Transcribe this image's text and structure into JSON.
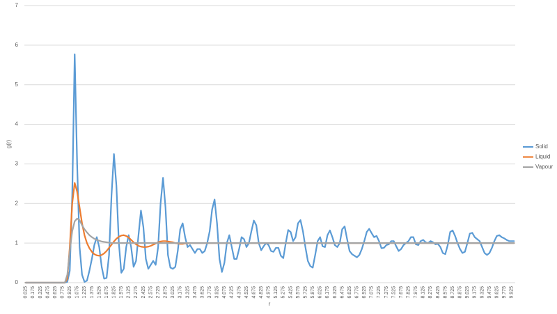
{
  "chart_data": {
    "type": "line",
    "x_label": "r",
    "y_label": "g(r)",
    "ylim": [
      0,
      7
    ],
    "yticks": [
      0,
      1,
      2,
      3,
      4,
      5,
      6,
      7
    ],
    "grid": true,
    "legend": "right",
    "categories": [
      "0.025",
      null,
      null,
      "0.175",
      null,
      null,
      "0.325",
      null,
      null,
      "0.475",
      null,
      null,
      "0.625",
      null,
      null,
      "0.775",
      null,
      null,
      "0.925",
      null,
      null,
      "1.075",
      null,
      null,
      "1.225",
      null,
      null,
      "1.375",
      null,
      null,
      "1.525",
      null,
      null,
      "1.675",
      null,
      null,
      "1.825",
      null,
      null,
      "1.975",
      null,
      null,
      "2.125",
      null,
      null,
      "2.275",
      null,
      null,
      "2.425",
      null,
      null,
      "2.575",
      null,
      null,
      "2.725",
      null,
      null,
      "2.875",
      null,
      null,
      "3.025",
      null,
      null,
      "3.175",
      null,
      null,
      "3.325",
      null,
      null,
      "3.475",
      null,
      null,
      "3.625",
      null,
      null,
      "3.775",
      null,
      null,
      "3.925",
      null,
      null,
      "4.075",
      null,
      null,
      "4.225",
      null,
      null,
      "4.375",
      null,
      null,
      "4.525",
      null,
      null,
      "4.675",
      null,
      null,
      "4.825",
      null,
      null,
      "4.975",
      null,
      null,
      "5.125",
      null,
      null,
      "5.275",
      null,
      null,
      "5.425",
      null,
      null,
      "5.575",
      null,
      null,
      "5.725",
      null,
      null,
      "5.875",
      null,
      null,
      "6.025",
      null,
      null,
      "6.175",
      null,
      null,
      "6.325",
      null,
      null,
      "6.475",
      null,
      null,
      "6.625",
      null,
      null,
      "6.775",
      null,
      null,
      "6.925",
      null,
      null,
      "7.075",
      null,
      null,
      "7.225",
      null,
      null,
      "7.375",
      null,
      null,
      "7.525",
      null,
      null,
      "7.675",
      null,
      null,
      "7.825",
      null,
      null,
      "7.975",
      null,
      null,
      "8.125",
      null,
      null,
      "8.275",
      null,
      null,
      "8.425",
      null,
      null,
      "8.575",
      null,
      null,
      "8.725",
      null,
      null,
      "8.875",
      null,
      null,
      "9.025",
      null,
      null,
      "9.175",
      null,
      null,
      "9.325",
      null,
      null,
      "9.475",
      null,
      null,
      "9.625",
      null,
      null,
      "9.775",
      null,
      null,
      "9.925",
      null
    ],
    "series": [
      {
        "name": "Solid",
        "color": "#5b9bd5",
        "values": [
          0,
          0,
          0,
          0,
          0,
          0,
          0,
          0,
          0,
          0,
          0,
          0,
          0,
          0,
          0,
          0,
          0,
          0.02,
          0.3,
          2.2,
          5.77,
          3.0,
          0.9,
          0.2,
          0.02,
          0.05,
          0.3,
          0.6,
          0.95,
          1.15,
          0.9,
          0.4,
          0.1,
          0.12,
          0.7,
          2.2,
          3.25,
          2.45,
          1.0,
          0.25,
          0.35,
          0.9,
          1.2,
          0.9,
          0.4,
          0.55,
          1.2,
          1.82,
          1.4,
          0.6,
          0.35,
          0.45,
          0.55,
          0.45,
          0.9,
          2.0,
          2.65,
          1.9,
          0.7,
          0.38,
          0.35,
          0.4,
          0.8,
          1.35,
          1.5,
          1.15,
          0.9,
          0.95,
          0.85,
          0.75,
          0.85,
          0.85,
          0.75,
          0.8,
          1.0,
          1.3,
          1.85,
          2.1,
          1.5,
          0.6,
          0.27,
          0.5,
          1.0,
          1.2,
          0.9,
          0.6,
          0.6,
          0.85,
          1.15,
          1.1,
          0.9,
          1.0,
          1.3,
          1.57,
          1.45,
          1.0,
          0.82,
          0.92,
          1.0,
          0.95,
          0.8,
          0.78,
          0.88,
          0.88,
          0.68,
          0.62,
          1.0,
          1.33,
          1.28,
          1.05,
          1.15,
          1.5,
          1.58,
          1.3,
          0.9,
          0.55,
          0.42,
          0.38,
          0.7,
          1.05,
          1.15,
          0.92,
          0.9,
          1.2,
          1.32,
          1.15,
          0.95,
          0.9,
          1.0,
          1.35,
          1.42,
          1.1,
          0.8,
          0.72,
          0.68,
          0.64,
          0.7,
          0.85,
          1.05,
          1.28,
          1.36,
          1.25,
          1.15,
          1.18,
          1.05,
          0.87,
          0.88,
          0.95,
          0.97,
          1.05,
          1.05,
          0.92,
          0.8,
          0.85,
          0.95,
          1.0,
          1.05,
          1.15,
          1.15,
          0.97,
          0.95,
          1.05,
          1.08,
          1.02,
          1.0,
          1.05,
          1.02,
          0.97,
          0.98,
          0.9,
          0.75,
          0.72,
          0.95,
          1.28,
          1.32,
          1.18,
          1.0,
          0.85,
          0.75,
          0.78,
          1.0,
          1.24,
          1.26,
          1.15,
          1.1,
          1.05,
          0.9,
          0.75,
          0.7,
          0.75,
          0.88,
          1.05,
          1.18,
          1.2,
          1.15,
          1.12,
          1.08,
          1.05,
          1.05,
          1.05
        ]
      },
      {
        "name": "Liquid",
        "color": "#ed7d31",
        "values": [
          0,
          0,
          0,
          0,
          0,
          0,
          0,
          0,
          0,
          0,
          0,
          0,
          0,
          0,
          0,
          0,
          0,
          0.1,
          0.9,
          2.0,
          2.52,
          2.3,
          1.9,
          1.5,
          1.2,
          1.0,
          0.87,
          0.78,
          0.72,
          0.69,
          0.68,
          0.7,
          0.74,
          0.8,
          0.88,
          0.96,
          1.04,
          1.11,
          1.16,
          1.19,
          1.2,
          1.18,
          1.14,
          1.08,
          1.02,
          0.97,
          0.93,
          0.91,
          0.9,
          0.9,
          0.91,
          0.93,
          0.96,
          0.99,
          1.02,
          1.04,
          1.05,
          1.05,
          1.04,
          1.03,
          1.02,
          1,
          0.99,
          0.98,
          0.98,
          0.99,
          0.99,
          1,
          1,
          1,
          1,
          1,
          1,
          1,
          1,
          1,
          1,
          1,
          1,
          1,
          1,
          1,
          1,
          1,
          1,
          1,
          1,
          1,
          1,
          1,
          1,
          1,
          1,
          1,
          1,
          1,
          1,
          1,
          1,
          1,
          1,
          1,
          1,
          1,
          1,
          1,
          1,
          1,
          1,
          1,
          1,
          1,
          1,
          1,
          1,
          1,
          1,
          1,
          1,
          1,
          1,
          1,
          1,
          1,
          1,
          1,
          1,
          1,
          1,
          1,
          1,
          1,
          1,
          1,
          1,
          1,
          1,
          1,
          1,
          1,
          1,
          1,
          1,
          1,
          1,
          1,
          1,
          1,
          1,
          1,
          1,
          1,
          1,
          1,
          1,
          1,
          1,
          1,
          1,
          1,
          1,
          1,
          1,
          1,
          1,
          1,
          1,
          1,
          1,
          1,
          1,
          1,
          1,
          1,
          1,
          1,
          1,
          1,
          1,
          1,
          1,
          1,
          1,
          1,
          1,
          1,
          1,
          1,
          1,
          1,
          1,
          1,
          1,
          1,
          1,
          1,
          1,
          1,
          1,
          1
        ]
      },
      {
        "name": "Vapour",
        "color": "#a5a5a5",
        "values": [
          0,
          0,
          0,
          0,
          0,
          0,
          0,
          0,
          0,
          0,
          0,
          0,
          0,
          0,
          0,
          0,
          0,
          0.2,
          0.8,
          1.3,
          1.55,
          1.62,
          1.58,
          1.45,
          1.35,
          1.27,
          1.2,
          1.15,
          1.11,
          1.08,
          1.06,
          1.04,
          1.03,
          1.02,
          1.01,
          1,
          1,
          1,
          1,
          1,
          1,
          1,
          1,
          1,
          1,
          1,
          1,
          1,
          1,
          1,
          1,
          1,
          1,
          1,
          1,
          1,
          1,
          1,
          1,
          1,
          1,
          1,
          1,
          1,
          1,
          1,
          1,
          1,
          1,
          1,
          1,
          1,
          1,
          1,
          1,
          1,
          1,
          1,
          1,
          1,
          1,
          1,
          1,
          1,
          1,
          1,
          1,
          1,
          1,
          1,
          1,
          1,
          1,
          1,
          1,
          1,
          1,
          1,
          1,
          1,
          1,
          1,
          1,
          1,
          1,
          1,
          1,
          1,
          1,
          1,
          1,
          1,
          1,
          1,
          1,
          1,
          1,
          1,
          1,
          1,
          1,
          1,
          1,
          1,
          1,
          1,
          1,
          1,
          1,
          1,
          1,
          1,
          1,
          1,
          1,
          1,
          1,
          1,
          1,
          1,
          1,
          1,
          1,
          1,
          1,
          1,
          1,
          1,
          1,
          1,
          1,
          1,
          1,
          1,
          1,
          1,
          1,
          1,
          1,
          1,
          1,
          1,
          1,
          1,
          1,
          1,
          1,
          1,
          1,
          1,
          1,
          1,
          1,
          1,
          1,
          1,
          1,
          1,
          1,
          1,
          1,
          1,
          1,
          1,
          1,
          1,
          1,
          1,
          1,
          1,
          1,
          1,
          1,
          1,
          1,
          1,
          1,
          1,
          1,
          1
        ]
      }
    ]
  }
}
